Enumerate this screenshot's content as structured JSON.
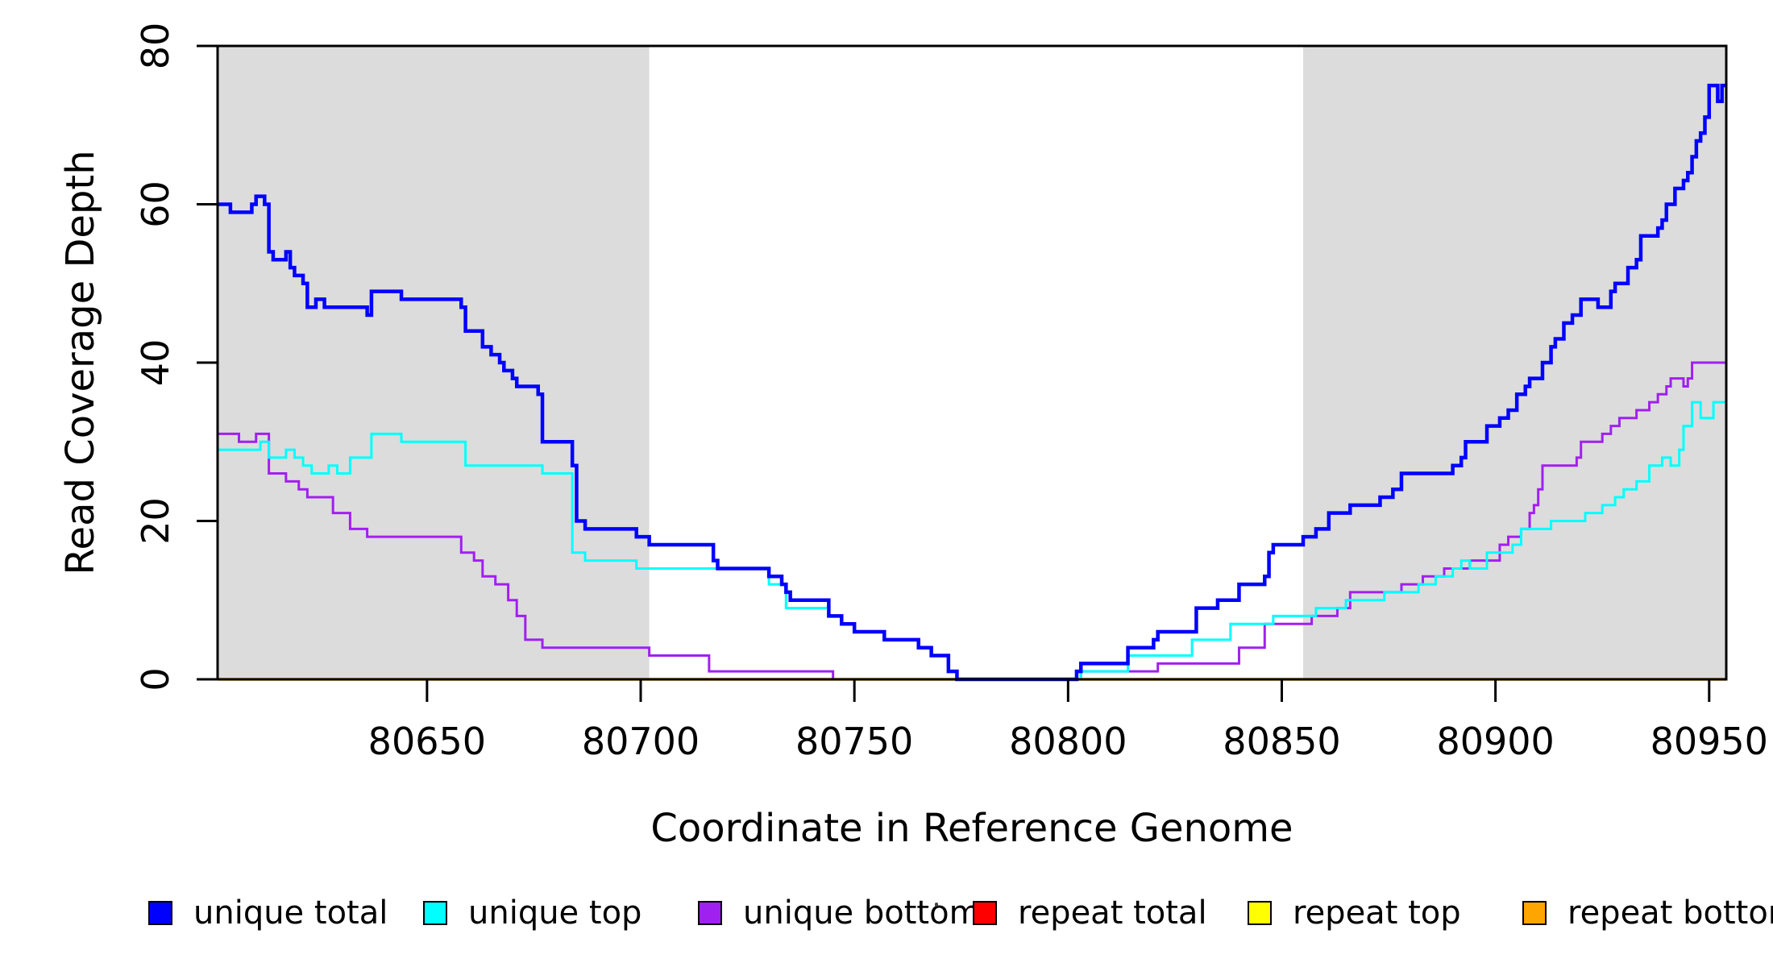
{
  "figure": {
    "x_axis_title": "Coordinate in Reference Genome",
    "y_axis_title": "Read Coverage Depth"
  },
  "legend": {
    "items": [
      {
        "label": "unique total",
        "color": "#0000FF"
      },
      {
        "label": "unique top",
        "color": "#00FFFF"
      },
      {
        "label": "unique bottom",
        "color": "#A020F0"
      },
      {
        "label": "repeat total",
        "color": "#FF0000"
      },
      {
        "label": "repeat top",
        "color": "#FFFF00"
      },
      {
        "label": "repeat bottom",
        "color": "#FFA500"
      }
    ]
  },
  "chart_data": {
    "type": "line",
    "line_style": "step-after",
    "title": "",
    "xlabel": "Coordinate in Reference Genome",
    "ylabel": "Read Coverage Depth",
    "xlim": [
      80601,
      80954
    ],
    "ylim": [
      0,
      80
    ],
    "x_ticks": [
      80650,
      80700,
      80750,
      80800,
      80850,
      80900,
      80950
    ],
    "y_ticks": [
      0,
      20,
      40,
      60,
      80
    ],
    "grid": false,
    "legend_position": "bottom",
    "background_color": "#FFFFFF",
    "axis_color": "#000000",
    "shaded_regions": [
      {
        "from": 80601,
        "to": 80702,
        "color": "#DCDCDC"
      },
      {
        "from": 80855,
        "to": 80954,
        "color": "#DCDCDC"
      }
    ],
    "draw_order": [
      "repeat total",
      "repeat top",
      "repeat bottom",
      "unique bottom",
      "unique top",
      "unique total"
    ],
    "series": [
      {
        "name": "unique total",
        "color": "#0000FF",
        "line_width": 4.5,
        "points": [
          [
            80601,
            60
          ],
          [
            80604,
            59
          ],
          [
            80609,
            60
          ],
          [
            80610,
            61
          ],
          [
            80612,
            60
          ],
          [
            80613,
            54
          ],
          [
            80614,
            53
          ],
          [
            80617,
            54
          ],
          [
            80618,
            52
          ],
          [
            80619,
            51
          ],
          [
            80621,
            50
          ],
          [
            80622,
            47
          ],
          [
            80624,
            48
          ],
          [
            80626,
            47
          ],
          [
            80636,
            46
          ],
          [
            80637,
            49
          ],
          [
            80644,
            48
          ],
          [
            80658,
            47
          ],
          [
            80659,
            44
          ],
          [
            80663,
            42
          ],
          [
            80665,
            41
          ],
          [
            80667,
            40
          ],
          [
            80668,
            39
          ],
          [
            80670,
            38
          ],
          [
            80671,
            37
          ],
          [
            80676,
            36
          ],
          [
            80677,
            30
          ],
          [
            80684,
            27
          ],
          [
            80685,
            20
          ],
          [
            80687,
            19
          ],
          [
            80699,
            18
          ],
          [
            80702,
            17
          ],
          [
            80717,
            15
          ],
          [
            80718,
            14
          ],
          [
            80730,
            13
          ],
          [
            80733,
            12
          ],
          [
            80734,
            11
          ],
          [
            80735,
            10
          ],
          [
            80744,
            8
          ],
          [
            80747,
            7
          ],
          [
            80750,
            6
          ],
          [
            80757,
            5
          ],
          [
            80765,
            4
          ],
          [
            80768,
            3
          ],
          [
            80772,
            1
          ],
          [
            80774,
            0
          ],
          [
            80802,
            1
          ],
          [
            80803,
            2
          ],
          [
            80814,
            4
          ],
          [
            80820,
            5
          ],
          [
            80821,
            6
          ],
          [
            80830,
            9
          ],
          [
            80835,
            10
          ],
          [
            80840,
            12
          ],
          [
            80846,
            13
          ],
          [
            80847,
            16
          ],
          [
            80848,
            17
          ],
          [
            80855,
            18
          ],
          [
            80858,
            19
          ],
          [
            80861,
            21
          ],
          [
            80866,
            22
          ],
          [
            80873,
            23
          ],
          [
            80876,
            24
          ],
          [
            80878,
            26
          ],
          [
            80890,
            27
          ],
          [
            80892,
            28
          ],
          [
            80893,
            30
          ],
          [
            80898,
            32
          ],
          [
            80901,
            33
          ],
          [
            80903,
            34
          ],
          [
            80905,
            36
          ],
          [
            80907,
            37
          ],
          [
            80908,
            38
          ],
          [
            80911,
            40
          ],
          [
            80913,
            42
          ],
          [
            80914,
            43
          ],
          [
            80916,
            45
          ],
          [
            80918,
            46
          ],
          [
            80920,
            48
          ],
          [
            80924,
            47
          ],
          [
            80927,
            49
          ],
          [
            80928,
            50
          ],
          [
            80931,
            52
          ],
          [
            80933,
            53
          ],
          [
            80934,
            56
          ],
          [
            80938,
            57
          ],
          [
            80939,
            58
          ],
          [
            80940,
            60
          ],
          [
            80942,
            62
          ],
          [
            80944,
            63
          ],
          [
            80945,
            64
          ],
          [
            80946,
            66
          ],
          [
            80947,
            68
          ],
          [
            80948,
            69
          ],
          [
            80949,
            71
          ],
          [
            80950,
            75
          ],
          [
            80952,
            73
          ],
          [
            80953,
            75
          ],
          [
            80954,
            75
          ]
        ]
      },
      {
        "name": "unique top",
        "color": "#00FFFF",
        "line_width": 3,
        "points": [
          [
            80601,
            29
          ],
          [
            80611,
            30
          ],
          [
            80613,
            28
          ],
          [
            80617,
            29
          ],
          [
            80619,
            28
          ],
          [
            80621,
            27
          ],
          [
            80623,
            26
          ],
          [
            80627,
            27
          ],
          [
            80629,
            26
          ],
          [
            80632,
            28
          ],
          [
            80637,
            31
          ],
          [
            80644,
            30
          ],
          [
            80659,
            27
          ],
          [
            80677,
            26
          ],
          [
            80684,
            16
          ],
          [
            80687,
            15
          ],
          [
            80699,
            14
          ],
          [
            80730,
            12
          ],
          [
            80734,
            9
          ],
          [
            80744,
            8
          ],
          [
            80747,
            7
          ],
          [
            80750,
            6
          ],
          [
            80757,
            5
          ],
          [
            80765,
            4
          ],
          [
            80768,
            3
          ],
          [
            80772,
            1
          ],
          [
            80774,
            0
          ],
          [
            80803,
            1
          ],
          [
            80814,
            3
          ],
          [
            80829,
            5
          ],
          [
            80838,
            7
          ],
          [
            80848,
            8
          ],
          [
            80858,
            9
          ],
          [
            80865,
            10
          ],
          [
            80874,
            11
          ],
          [
            80882,
            12
          ],
          [
            80886,
            13
          ],
          [
            80890,
            14
          ],
          [
            80892,
            15
          ],
          [
            80894,
            14
          ],
          [
            80898,
            16
          ],
          [
            80904,
            17
          ],
          [
            80906,
            19
          ],
          [
            80913,
            20
          ],
          [
            80921,
            21
          ],
          [
            80925,
            22
          ],
          [
            80928,
            23
          ],
          [
            80930,
            24
          ],
          [
            80933,
            25
          ],
          [
            80936,
            27
          ],
          [
            80939,
            28
          ],
          [
            80941,
            27
          ],
          [
            80943,
            29
          ],
          [
            80944,
            32
          ],
          [
            80946,
            35
          ],
          [
            80948,
            33
          ],
          [
            80951,
            35
          ],
          [
            80954,
            35
          ]
        ]
      },
      {
        "name": "unique bottom",
        "color": "#A020F0",
        "line_width": 3,
        "points": [
          [
            80601,
            31
          ],
          [
            80606,
            30
          ],
          [
            80610,
            31
          ],
          [
            80613,
            26
          ],
          [
            80617,
            25
          ],
          [
            80620,
            24
          ],
          [
            80622,
            23
          ],
          [
            80628,
            21
          ],
          [
            80632,
            19
          ],
          [
            80636,
            18
          ],
          [
            80658,
            16
          ],
          [
            80661,
            15
          ],
          [
            80663,
            13
          ],
          [
            80666,
            12
          ],
          [
            80669,
            10
          ],
          [
            80671,
            8
          ],
          [
            80673,
            5
          ],
          [
            80677,
            4
          ],
          [
            80702,
            3
          ],
          [
            80716,
            1
          ],
          [
            80745,
            0
          ],
          [
            80803,
            1
          ],
          [
            80821,
            2
          ],
          [
            80840,
            4
          ],
          [
            80846,
            7
          ],
          [
            80857,
            8
          ],
          [
            80863,
            9
          ],
          [
            80866,
            11
          ],
          [
            80878,
            12
          ],
          [
            80883,
            13
          ],
          [
            80888,
            14
          ],
          [
            80894,
            15
          ],
          [
            80901,
            17
          ],
          [
            80903,
            18
          ],
          [
            80906,
            19
          ],
          [
            80908,
            21
          ],
          [
            80909,
            22
          ],
          [
            80910,
            24
          ],
          [
            80911,
            27
          ],
          [
            80919,
            28
          ],
          [
            80920,
            30
          ],
          [
            80925,
            31
          ],
          [
            80927,
            32
          ],
          [
            80929,
            33
          ],
          [
            80933,
            34
          ],
          [
            80936,
            35
          ],
          [
            80938,
            36
          ],
          [
            80940,
            37
          ],
          [
            80941,
            38
          ],
          [
            80944,
            37
          ],
          [
            80945,
            38
          ],
          [
            80946,
            40
          ],
          [
            80954,
            40
          ]
        ]
      },
      {
        "name": "repeat total",
        "color": "#FF0000",
        "line_width": 3,
        "points": [
          [
            80601,
            0
          ],
          [
            80954,
            0
          ]
        ]
      },
      {
        "name": "repeat top",
        "color": "#FFFF00",
        "line_width": 3,
        "points": [
          [
            80601,
            0
          ],
          [
            80954,
            0
          ]
        ]
      },
      {
        "name": "repeat bottom",
        "color": "#FFA500",
        "line_width": 3.5,
        "points": [
          [
            80601,
            0
          ],
          [
            80954,
            0
          ]
        ]
      }
    ]
  }
}
